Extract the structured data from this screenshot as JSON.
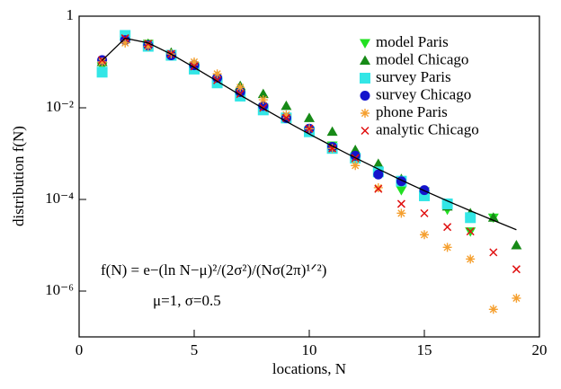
{
  "chart_data": {
    "type": "scatter",
    "xlabel": "locations, N",
    "ylabel": "distribution f(N)",
    "xlim": [
      0,
      20
    ],
    "xticks": [
      0,
      5,
      10,
      15,
      20
    ],
    "ylim": [
      1e-07,
      1
    ],
    "yscale": "log",
    "yticks": [
      1,
      {
        "value": 0.01,
        "label": "10⁻²"
      },
      {
        "value": 0.0001,
        "label": "10⁻⁴"
      },
      {
        "value": 1e-06,
        "label": "10⁻⁶"
      }
    ],
    "legend": "upper right",
    "annotations": [
      "f(N) = e−(ln N−μ)²/(2σ²)/(Nσ(2π)¹ᐟ²)",
      "μ=1, σ=0.5"
    ],
    "x": [
      1,
      2,
      3,
      4,
      5,
      6,
      7,
      8,
      9,
      10,
      11,
      12,
      13,
      14,
      15,
      16,
      17,
      18,
      19
    ],
    "series": [
      {
        "name": "model Paris",
        "color": "#22e022",
        "marker": "triangle-down",
        "values": [
          0.08,
          0.3,
          0.25,
          0.15,
          0.08,
          0.04,
          0.02,
          0.01,
          0.006,
          0.003,
          0.0015,
          0.0008,
          0.0004,
          0.00016,
          0.00015,
          6e-05,
          2e-05,
          4e-05,
          null
        ]
      },
      {
        "name": "model Chicago",
        "color": "#178a17",
        "marker": "triangle-up",
        "values": [
          0.1,
          0.32,
          0.25,
          0.16,
          0.09,
          0.05,
          0.03,
          0.02,
          0.011,
          0.006,
          0.003,
          0.0012,
          0.0006,
          0.00028,
          0.00015,
          7e-05,
          5e-05,
          4e-05,
          1e-05
        ]
      },
      {
        "name": "survey Paris",
        "color": "#33e6e6",
        "marker": "square",
        "values": [
          0.06,
          0.38,
          0.22,
          0.14,
          0.07,
          0.035,
          0.018,
          0.009,
          0.006,
          0.003,
          0.0013,
          0.0008,
          0.0004,
          0.00025,
          0.00012,
          8e-05,
          4e-05,
          null,
          null
        ]
      },
      {
        "name": "survey Chicago",
        "color": "#1414cc",
        "marker": "circle",
        "values": [
          0.11,
          0.3,
          0.23,
          0.14,
          0.085,
          0.045,
          0.022,
          0.011,
          0.006,
          0.0035,
          0.0014,
          0.0009,
          0.00035,
          0.00025,
          0.00016,
          null,
          null,
          null,
          null
        ]
      },
      {
        "name": "phone Paris",
        "color": "#f5a030",
        "marker": "asterisk",
        "values": [
          0.1,
          0.26,
          0.22,
          0.15,
          0.1,
          0.055,
          0.028,
          0.015,
          0.007,
          0.0035,
          0.0013,
          0.00055,
          0.00018,
          5e-05,
          1.7e-05,
          9e-06,
          5e-06,
          4e-07,
          7e-07
        ]
      },
      {
        "name": "analytic Chicago",
        "color": "#e01010",
        "marker": "x",
        "values": [
          0.11,
          0.33,
          0.25,
          0.15,
          0.08,
          0.04,
          0.02,
          0.01,
          0.006,
          0.0035,
          0.0013,
          0.0008,
          0.00017,
          8e-05,
          5e-05,
          2.5e-05,
          2e-05,
          7e-06,
          3e-06
        ]
      },
      {
        "color": "#000000",
        "marker": "line",
        "values": [
          0.108,
          0.33,
          0.261,
          0.148,
          0.076,
          0.038,
          0.019,
          0.0097,
          0.00505,
          0.00268,
          0.00146,
          0.00081,
          0.00046,
          0.000264,
          0.000155,
          9.3e-05,
          5.65e-05,
          3.5e-05,
          2.18e-05
        ]
      }
    ]
  }
}
